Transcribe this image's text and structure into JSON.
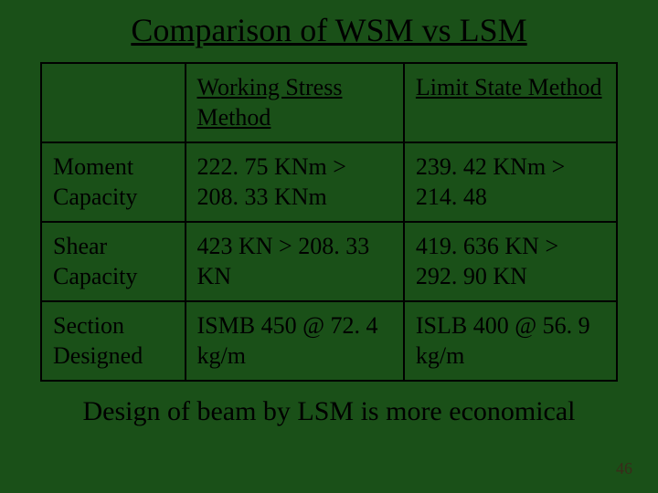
{
  "title": "Comparison of WSM vs LSM",
  "columns": [
    "",
    "Working Stress Method",
    "Limit State Method"
  ],
  "rows": [
    {
      "label": "Moment Capacity",
      "wsm": "222. 75 KNm > 208. 33 KNm",
      "lsm": "239. 42 KNm > 214. 48"
    },
    {
      "label": "Shear Capacity",
      "wsm": "423 KN  > 208. 33 KN",
      "lsm": "419. 636 KN > 292. 90 KN"
    },
    {
      "label": "Section Designed",
      "wsm": "ISMB 450 @ 72. 4 kg/m",
      "lsm": "ISLB 400 @ 56. 9 kg/m"
    }
  ],
  "footer": "Design of beam by LSM is more economical",
  "page_number": "46",
  "style": {
    "background_color": "#1a5018",
    "text_color": "#000000",
    "border_color": "#000000",
    "title_fontsize": 36,
    "cell_fontsize": 26,
    "footer_fontsize": 30,
    "pagenum_fontsize": 18,
    "font_family": "Times New Roman"
  }
}
